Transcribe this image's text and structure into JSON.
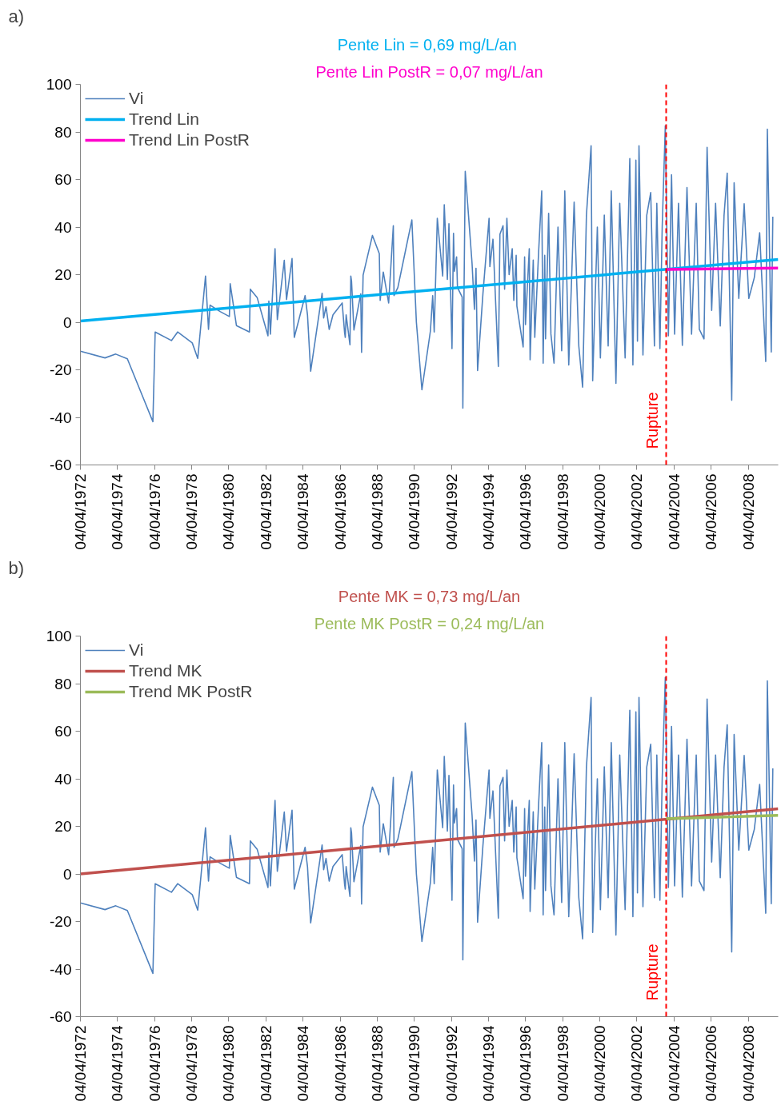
{
  "chart_data": [
    {
      "type": "line",
      "title": "a)",
      "xlim": [
        "1972-04-04",
        "2009-11-15"
      ],
      "ylim": [
        -60,
        100
      ],
      "xticks": [
        {
          "value": "1972-04-04",
          "label": "04/04/1972"
        },
        {
          "value": "1974-04-04",
          "label": "04/04/1974"
        },
        {
          "value": "1976-04-04",
          "label": "04/04/1976"
        },
        {
          "value": "1978-04-04",
          "label": "04/04/1978"
        },
        {
          "value": "1980-04-04",
          "label": "04/04/1980"
        },
        {
          "value": "1982-04-04",
          "label": "04/04/1982"
        },
        {
          "value": "1984-04-04",
          "label": "04/04/1984"
        },
        {
          "value": "1986-04-04",
          "label": "04/04/1986"
        },
        {
          "value": "1988-04-04",
          "label": "04/04/1988"
        },
        {
          "value": "1990-04-04",
          "label": "04/04/1990"
        },
        {
          "value": "1992-04-04",
          "label": "04/04/1992"
        },
        {
          "value": "1994-04-04",
          "label": "04/04/1994"
        },
        {
          "value": "1996-04-04",
          "label": "04/04/1996"
        },
        {
          "value": "1998-04-04",
          "label": "04/04/1998"
        },
        {
          "value": "2000-04-04",
          "label": "04/04/2000"
        },
        {
          "value": "2002-04-04",
          "label": "04/04/2002"
        },
        {
          "value": "2004-04-04",
          "label": "04/04/2004"
        },
        {
          "value": "2006-04-04",
          "label": "04/04/2006"
        },
        {
          "value": "2008-04-04",
          "label": "04/04/2008"
        }
      ],
      "yticks": [
        -60,
        -40,
        -20,
        0,
        20,
        40,
        60,
        80,
        100
      ],
      "grid": false,
      "legend": "top left",
      "marker": "none",
      "annotations": [
        "Pente Lin = 0,69  mg/L/an",
        "Pente Lin PostR = 0,07 mg/L/an"
      ],
      "ref_lines": [
        {
          "axis": "x",
          "value": "2003-11-01",
          "label": "Rupture",
          "color": "#ff0000",
          "line_style": "dashed"
        }
      ],
      "series": [
        {
          "name": "Vi",
          "color": "#4f81bd",
          "x": [
            "1972-04-04",
            "1973-08-01",
            "1974-03-01",
            "1974-10-15",
            "1976-03-01",
            "1976-04-15",
            "1977-03-01",
            "1977-07-01",
            "1978-04-15",
            "1978-08-01",
            "1979-01-01",
            "1979-03-01",
            "1979-04-01",
            "1979-10-15",
            "1980-04-15",
            "1980-05-01",
            "1980-09-01",
            "1981-05-15",
            "1981-06-01",
            "1981-10-15",
            "1982-05-15",
            "1982-06-01",
            "1982-07-01",
            "1982-10-01",
            "1982-11-15",
            "1983-04-01",
            "1983-05-15",
            "1983-09-01",
            "1983-10-15",
            "1984-05-15",
            "1984-07-01",
            "1984-09-01",
            "1985-04-15",
            "1985-05-15",
            "1985-07-01",
            "1985-09-01",
            "1985-11-15",
            "1986-05-15",
            "1986-07-01",
            "1986-07-15",
            "1986-08-01",
            "1986-10-15",
            "1986-11-01",
            "1986-11-15",
            "1987-01-01",
            "1987-05-15",
            "1987-06-01",
            "1987-07-01",
            "1988-01-01",
            "1988-05-15",
            "1988-06-01",
            "1988-08-01",
            "1988-11-15",
            "1989-02-15",
            "1989-03-01",
            "1989-05-15",
            "1990-02-15",
            "1990-05-15",
            "1990-09-01",
            "1991-02-15",
            "1991-04-01",
            "1991-05-01",
            "1991-07-01",
            "1991-10-15",
            "1991-11-15",
            "1992-01-15",
            "1992-02-15",
            "1992-04-15",
            "1992-05-15",
            "1992-06-01",
            "1992-07-15",
            "1992-08-01",
            "1992-11-01",
            "1992-11-15",
            "1993-01-01",
            "1993-02-15",
            "1993-05-15",
            "1993-07-01",
            "1993-08-01",
            "1993-09-01",
            "1993-12-15",
            "1994-04-15",
            "1994-05-01",
            "1994-07-01",
            "1994-10-15",
            "1994-11-15",
            "1995-01-15",
            "1995-02-15",
            "1995-04-01",
            "1995-05-15",
            "1995-07-15",
            "1995-08-15",
            "1995-10-01",
            "1995-10-15",
            "1996-02-15",
            "1996-03-15",
            "1996-04-01",
            "1996-06-15",
            "1996-07-01",
            "1996-09-01",
            "1996-10-01",
            "1996-12-15",
            "1997-02-15",
            "1997-03-15",
            "1997-04-15",
            "1997-05-01",
            "1997-07-01",
            "1997-08-15",
            "1997-10-15",
            "1998-01-01",
            "1998-03-15",
            "1998-05-15",
            "1998-08-01",
            "1998-11-15",
            "1999-02-15",
            "1999-05-01",
            "1999-07-15",
            "1999-10-15",
            "1999-11-15",
            "2000-02-15",
            "2000-04-15",
            "2000-07-01",
            "2000-09-15",
            "2000-11-15",
            "2001-02-15",
            "2001-05-01",
            "2001-08-15",
            "2001-11-15",
            "2002-01-15",
            "2002-03-15",
            "2002-04-15",
            "2002-05-15",
            "2002-08-01",
            "2002-10-15",
            "2003-01-01",
            "2003-03-15",
            "2003-05-01",
            "2003-07-01",
            "2003-08-15",
            "2003-10-15",
            "2003-12-15",
            "2004-02-15",
            "2004-04-15",
            "2004-07-01",
            "2004-09-15",
            "2004-12-15",
            "2005-03-15",
            "2005-06-15",
            "2005-08-15",
            "2005-11-15",
            "2006-01-15",
            "2006-04-15",
            "2006-07-01",
            "2006-10-01",
            "2006-12-15",
            "2007-02-15",
            "2007-05-15",
            "2007-07-01",
            "2007-10-01",
            "2008-01-15",
            "2008-04-15",
            "2008-08-01",
            "2008-11-15",
            "2009-03-15",
            "2009-04-15",
            "2009-05-15",
            "2009-07-01",
            "2009-08-01"
          ],
          "values": [
            -12.2,
            -15,
            -13.4,
            -15.4,
            -41.8,
            -4.1,
            -7.7,
            -4.1,
            -8.7,
            -15.2,
            19.4,
            -3,
            7.2,
            4.5,
            2.4,
            16.2,
            -1.4,
            -4.1,
            13.9,
            10.3,
            -5.7,
            8.9,
            -5,
            30.9,
            1.1,
            26,
            9.5,
            26.8,
            -6.4,
            11.2,
            3.1,
            -20.6,
            12.2,
            1.8,
            6.5,
            -3,
            3.1,
            8.1,
            -4.3,
            -6.4,
            3.1,
            -9.5,
            19.4,
            17.3,
            -3.3,
            11.9,
            -12.7,
            19.8,
            36.5,
            28.8,
            9.2,
            21.1,
            8.1,
            40.6,
            11.2,
            14.6,
            43,
            0,
            -28.4,
            -3.7,
            11.2,
            -4.1,
            43.7,
            19.4,
            49.4,
            18,
            41.4,
            -11.1,
            37.4,
            21.4,
            27.5,
            14.6,
            10.6,
            -36.1,
            63.4,
            50.5,
            24.8,
            5.4,
            22.7,
            -20.3,
            11.9,
            43.7,
            23.4,
            34.9,
            -18.6,
            37,
            40.6,
            13.9,
            43.7,
            20,
            30.9,
            9.2,
            28.1,
            6.8,
            -10.4,
            27.5,
            -1,
            30.9,
            -15.8,
            26.1,
            -6.4,
            29.2,
            55.2,
            -17.2,
            28.1,
            -7,
            45.8,
            -5,
            -17.2,
            40,
            -12,
            55.2,
            -18,
            50.5,
            -10,
            -27.3,
            45,
            74.2,
            -24.6,
            40,
            -15,
            45,
            -10,
            55.2,
            -25.7,
            50,
            -15,
            68.8,
            -18,
            68.1,
            -8,
            74.2,
            -13.8,
            45,
            54.5,
            -10,
            50,
            -11.1,
            40,
            82.6,
            -5.7,
            62,
            -5,
            50,
            -9.7,
            56.6,
            -5,
            50,
            -3,
            -7,
            73.5,
            5,
            50,
            -1.6,
            45,
            62.7,
            -32.8,
            58.6,
            10,
            49.8,
            10,
            18.7,
            37.6,
            -16.5,
            81.2,
            47.1,
            -12.5,
            44.4
          ]
        },
        {
          "name": "Trend Lin",
          "color": "#00b0f0",
          "x": [
            "1972-04-04",
            "2009-11-15"
          ],
          "values": [
            0.5,
            26.4
          ]
        },
        {
          "name": "Trend Lin PostR",
          "color": "#ff00cc",
          "x": [
            "2003-11-01",
            "2009-11-15"
          ],
          "values": [
            22.2,
            22.8
          ]
        }
      ]
    },
    {
      "type": "line",
      "title": "b)",
      "xlim": [
        "1972-04-04",
        "2009-11-15"
      ],
      "ylim": [
        -60,
        100
      ],
      "xticks": [
        {
          "value": "1972-04-04",
          "label": "04/04/1972"
        },
        {
          "value": "1974-04-04",
          "label": "04/04/1974"
        },
        {
          "value": "1976-04-04",
          "label": "04/04/1976"
        },
        {
          "value": "1978-04-04",
          "label": "04/04/1978"
        },
        {
          "value": "1980-04-04",
          "label": "04/04/1980"
        },
        {
          "value": "1982-04-04",
          "label": "04/04/1982"
        },
        {
          "value": "1984-04-04",
          "label": "04/04/1984"
        },
        {
          "value": "1986-04-04",
          "label": "04/04/1986"
        },
        {
          "value": "1988-04-04",
          "label": "04/04/1988"
        },
        {
          "value": "1990-04-04",
          "label": "04/04/1990"
        },
        {
          "value": "1992-04-04",
          "label": "04/04/1992"
        },
        {
          "value": "1994-04-04",
          "label": "04/04/1994"
        },
        {
          "value": "1996-04-04",
          "label": "04/04/1996"
        },
        {
          "value": "1998-04-04",
          "label": "04/04/1998"
        },
        {
          "value": "2000-04-04",
          "label": "04/04/2000"
        },
        {
          "value": "2002-04-04",
          "label": "04/04/2002"
        },
        {
          "value": "2004-04-04",
          "label": "04/04/2004"
        },
        {
          "value": "2006-04-04",
          "label": "04/04/2006"
        },
        {
          "value": "2008-04-04",
          "label": "04/04/2008"
        }
      ],
      "yticks": [
        -60,
        -40,
        -20,
        0,
        20,
        40,
        60,
        80,
        100
      ],
      "grid": false,
      "legend": "top left",
      "marker": "none",
      "annotations": [
        "Pente MK = 0,73 mg/L/an",
        "Pente MK PostR = 0,24 mg/L/an"
      ],
      "ref_lines": [
        {
          "axis": "x",
          "value": "2003-11-01",
          "label": "Rupture",
          "color": "#ff0000",
          "line_style": "dashed"
        }
      ],
      "series": [
        {
          "name": "Vi",
          "color": "#4f81bd",
          "x": [
            "1972-04-04",
            "1973-08-01",
            "1974-03-01",
            "1974-10-15",
            "1976-03-01",
            "1976-04-15",
            "1977-03-01",
            "1977-07-01",
            "1978-04-15",
            "1978-08-01",
            "1979-01-01",
            "1979-03-01",
            "1979-04-01",
            "1979-10-15",
            "1980-04-15",
            "1980-05-01",
            "1980-09-01",
            "1981-05-15",
            "1981-06-01",
            "1981-10-15",
            "1982-05-15",
            "1982-06-01",
            "1982-07-01",
            "1982-10-01",
            "1982-11-15",
            "1983-04-01",
            "1983-05-15",
            "1983-09-01",
            "1983-10-15",
            "1984-05-15",
            "1984-07-01",
            "1984-09-01",
            "1985-04-15",
            "1985-05-15",
            "1985-07-01",
            "1985-09-01",
            "1985-11-15",
            "1986-05-15",
            "1986-07-01",
            "1986-07-15",
            "1986-08-01",
            "1986-10-15",
            "1986-11-01",
            "1986-11-15",
            "1987-01-01",
            "1987-05-15",
            "1987-06-01",
            "1987-07-01",
            "1988-01-01",
            "1988-05-15",
            "1988-06-01",
            "1988-08-01",
            "1988-11-15",
            "1989-02-15",
            "1989-03-01",
            "1989-05-15",
            "1990-02-15",
            "1990-05-15",
            "1990-09-01",
            "1991-02-15",
            "1991-04-01",
            "1991-05-01",
            "1991-07-01",
            "1991-10-15",
            "1991-11-15",
            "1992-01-15",
            "1992-02-15",
            "1992-04-15",
            "1992-05-15",
            "1992-06-01",
            "1992-07-15",
            "1992-08-01",
            "1992-11-01",
            "1992-11-15",
            "1993-01-01",
            "1993-02-15",
            "1993-05-15",
            "1993-07-01",
            "1993-08-01",
            "1993-09-01",
            "1993-12-15",
            "1994-04-15",
            "1994-05-01",
            "1994-07-01",
            "1994-10-15",
            "1994-11-15",
            "1995-01-15",
            "1995-02-15",
            "1995-04-01",
            "1995-05-15",
            "1995-07-15",
            "1995-08-15",
            "1995-10-01",
            "1995-10-15",
            "1996-02-15",
            "1996-03-15",
            "1996-04-01",
            "1996-06-15",
            "1996-07-01",
            "1996-09-01",
            "1996-10-01",
            "1996-12-15",
            "1997-02-15",
            "1997-03-15",
            "1997-04-15",
            "1997-05-01",
            "1997-07-01",
            "1997-08-15",
            "1997-10-15",
            "1998-01-01",
            "1998-03-15",
            "1998-05-15",
            "1998-08-01",
            "1998-11-15",
            "1999-02-15",
            "1999-05-01",
            "1999-07-15",
            "1999-10-15",
            "1999-11-15",
            "2000-02-15",
            "2000-04-15",
            "2000-07-01",
            "2000-09-15",
            "2000-11-15",
            "2001-02-15",
            "2001-05-01",
            "2001-08-15",
            "2001-11-15",
            "2002-01-15",
            "2002-03-15",
            "2002-04-15",
            "2002-05-15",
            "2002-08-01",
            "2002-10-15",
            "2003-01-01",
            "2003-03-15",
            "2003-05-01",
            "2003-07-01",
            "2003-08-15",
            "2003-10-15",
            "2003-12-15",
            "2004-02-15",
            "2004-04-15",
            "2004-07-01",
            "2004-09-15",
            "2004-12-15",
            "2005-03-15",
            "2005-06-15",
            "2005-08-15",
            "2005-11-15",
            "2006-01-15",
            "2006-04-15",
            "2006-07-01",
            "2006-10-01",
            "2006-12-15",
            "2007-02-15",
            "2007-05-15",
            "2007-07-01",
            "2007-10-01",
            "2008-01-15",
            "2008-04-15",
            "2008-08-01",
            "2008-11-15",
            "2009-03-15",
            "2009-04-15",
            "2009-05-15",
            "2009-07-01",
            "2009-08-01"
          ],
          "values": [
            -12.2,
            -15,
            -13.4,
            -15.4,
            -41.8,
            -4.1,
            -7.7,
            -4.1,
            -8.7,
            -15.2,
            19.4,
            -3,
            7.2,
            4.5,
            2.4,
            16.2,
            -1.4,
            -4.1,
            13.9,
            10.3,
            -5.7,
            8.9,
            -5,
            30.9,
            1.1,
            26,
            9.5,
            26.8,
            -6.4,
            11.2,
            3.1,
            -20.6,
            12.2,
            1.8,
            6.5,
            -3,
            3.1,
            8.1,
            -4.3,
            -6.4,
            3.1,
            -9.5,
            19.4,
            17.3,
            -3.3,
            11.9,
            -12.7,
            19.8,
            36.5,
            28.8,
            9.2,
            21.1,
            8.1,
            40.6,
            11.2,
            14.6,
            43,
            0,
            -28.4,
            -3.7,
            11.2,
            -4.1,
            43.7,
            19.4,
            49.4,
            18,
            41.4,
            -11.1,
            37.4,
            21.4,
            27.5,
            14.6,
            10.6,
            -36.1,
            63.4,
            50.5,
            24.8,
            5.4,
            22.7,
            -20.3,
            11.9,
            43.7,
            23.4,
            34.9,
            -18.6,
            37,
            40.6,
            13.9,
            43.7,
            20,
            30.9,
            9.2,
            28.1,
            6.8,
            -10.4,
            27.5,
            -1,
            30.9,
            -15.8,
            26.1,
            -6.4,
            29.2,
            55.2,
            -17.2,
            28.1,
            -7,
            45.8,
            -5,
            -17.2,
            40,
            -12,
            55.2,
            -18,
            50.5,
            -10,
            -27.3,
            45,
            74.2,
            -24.6,
            40,
            -15,
            45,
            -10,
            55.2,
            -25.7,
            50,
            -15,
            68.8,
            -18,
            68.1,
            -8,
            74.2,
            -13.8,
            45,
            54.5,
            -10,
            50,
            -11.1,
            40,
            82.6,
            -5.7,
            62,
            -5,
            50,
            -9.7,
            56.6,
            -5,
            50,
            -3,
            -7,
            73.5,
            5,
            50,
            -1.6,
            45,
            62.7,
            -32.8,
            58.6,
            10,
            49.8,
            10,
            18.7,
            37.6,
            -16.5,
            81.2,
            47.1,
            -12.5,
            44.4
          ]
        },
        {
          "name": "Trend MK",
          "color": "#c0504d",
          "x": [
            "1972-04-04",
            "2009-11-15"
          ],
          "values": [
            0,
            27.4
          ]
        },
        {
          "name": "Trend MK PostR",
          "color": "#9bbb59",
          "x": [
            "2003-11-01",
            "2009-11-15"
          ],
          "values": [
            23.2,
            24.6
          ]
        }
      ]
    }
  ]
}
